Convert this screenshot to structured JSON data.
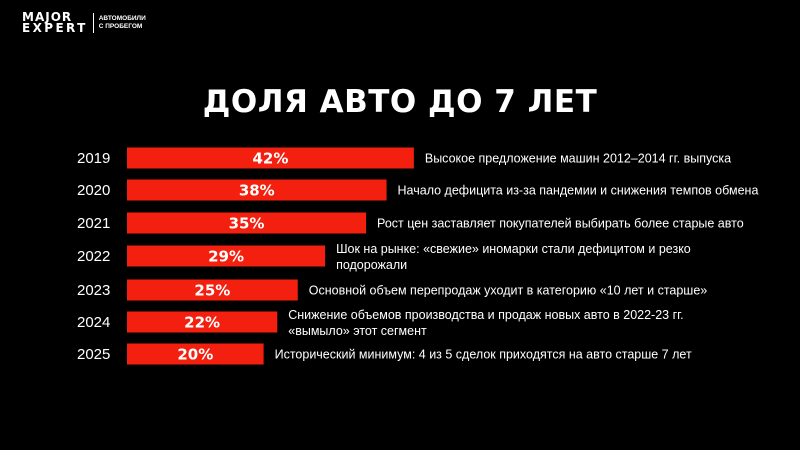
{
  "logo": {
    "line1": "MAJOR",
    "line2": "EXPERT",
    "sub1": "АВТОМОБИЛИ",
    "sub2": "С ПРОБЕГОМ"
  },
  "chart_data": {
    "type": "bar",
    "orientation": "horizontal",
    "title": "ДОЛЯ АВТО ДО 7 ЛЕТ",
    "categories": [
      "2019",
      "2020",
      "2021",
      "2022",
      "2023",
      "2024",
      "2025"
    ],
    "values": [
      42,
      38,
      35,
      29,
      25,
      22,
      20
    ],
    "data_labels": [
      "42%",
      "38%",
      "35%",
      "29%",
      "25%",
      "22%",
      "20%"
    ],
    "annotations": [
      [
        "Высокое предложение машин 2012–2014 гг. выпуска"
      ],
      [
        "Начало дефицита из-за пандемии и снижения темпов обмена"
      ],
      [
        "Рост цен заставляет покупателей выбирать более старые авто"
      ],
      [
        "Шок на рынке: «свежие» иномарки стали дефицитом и резко",
        "подорожали"
      ],
      [
        "Основной объем перепродаж уходит в категорию «10 лет и старше»"
      ],
      [
        "Снижение объемов производства и продаж новых авто в 2022-23 гг.",
        "«вымыло» этот сегмент"
      ],
      [
        "Исторический минимум: 4 из 5 сделок  приходятся на авто старше 7 лет"
      ]
    ],
    "unit": "%",
    "grid": false,
    "bar_color": "#f3200f",
    "background": "#000000"
  }
}
